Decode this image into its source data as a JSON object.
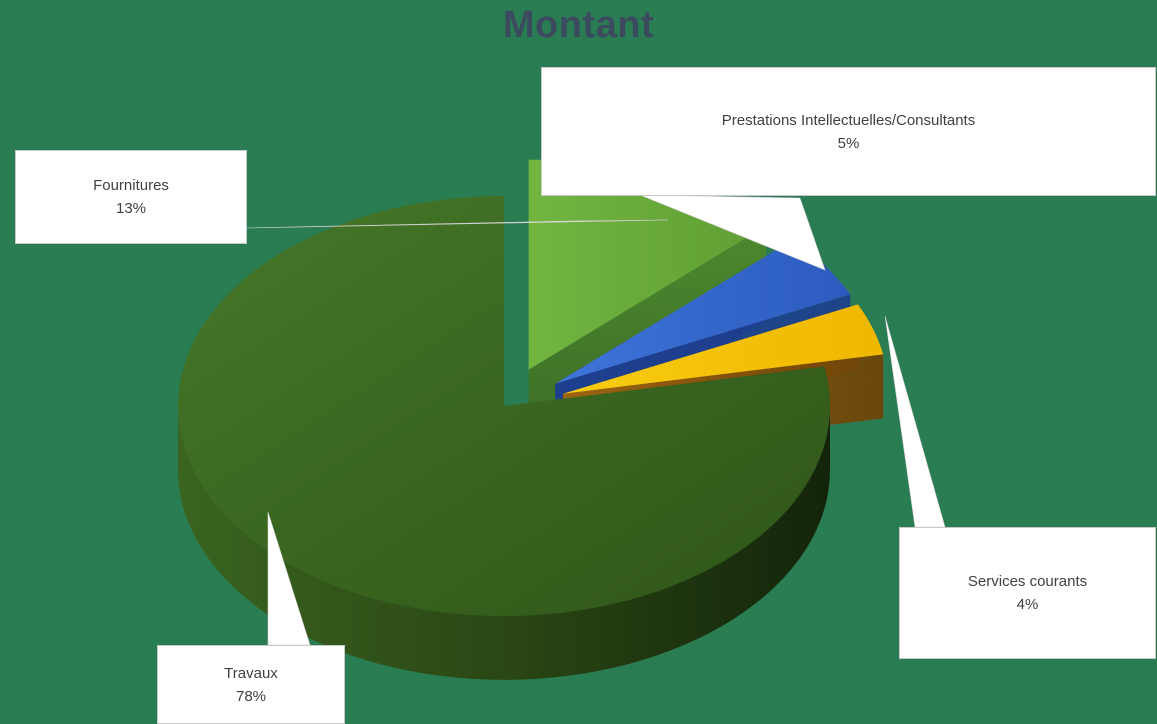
{
  "chart_data": {
    "type": "pie",
    "style": "3d-exploded",
    "title": "Montant",
    "categories": [
      "Travaux",
      "Fournitures",
      "Prestations Intellectuelles/Consultants",
      "Services courants"
    ],
    "values": [
      78,
      13,
      5,
      4
    ],
    "labels": [
      "78%",
      "13%",
      "5%",
      "4%"
    ],
    "colors": [
      "#3f6b22",
      "#6aaa3a",
      "#3366cc",
      "#f5c400"
    ],
    "legend": "none",
    "data_labels": "callouts"
  }
}
